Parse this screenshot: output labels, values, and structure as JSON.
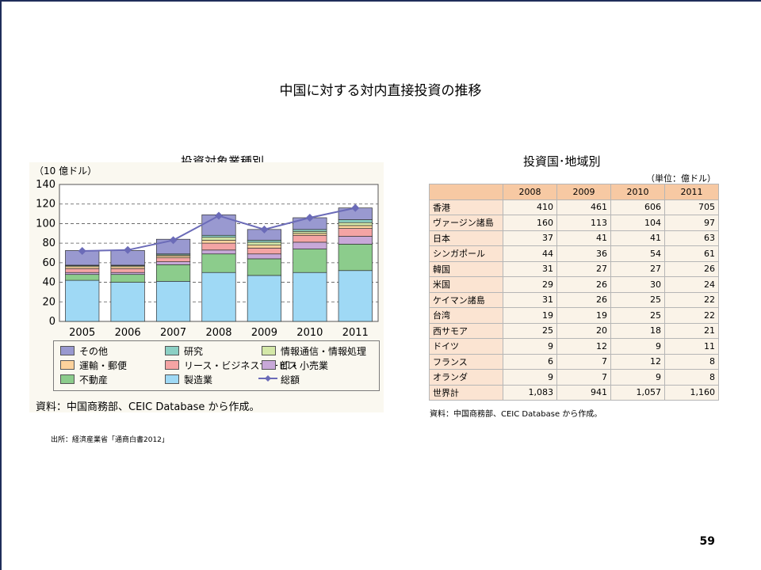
{
  "page": {
    "title": "中国に対する対内直接投資の推移",
    "left_subtitle": "投資対象業種別",
    "right_subtitle": "投資国･地域別",
    "footnote": "出所：経済産業省「通商白書2012」",
    "page_number": "59"
  },
  "chart_data": {
    "type": "bar",
    "stacked": true,
    "ylabel": "（10 億ドル）",
    "ylim": [
      0,
      140
    ],
    "yticks": [
      0,
      20,
      40,
      60,
      80,
      100,
      120,
      140
    ],
    "grid": true,
    "categories": [
      "2005",
      "2006",
      "2007",
      "2008",
      "2009",
      "2010",
      "2011"
    ],
    "series": [
      {
        "name": "製造業",
        "color": "#9fd9f5",
        "values": [
          42,
          40,
          41,
          50,
          47,
          50,
          52
        ]
      },
      {
        "name": "不動産",
        "color": "#8ccc8c",
        "values": [
          6,
          8,
          17,
          19,
          17,
          24,
          27
        ]
      },
      {
        "name": "卸・小売業",
        "color": "#c8a8d8",
        "values": [
          2,
          2,
          3,
          4,
          5,
          7,
          8
        ]
      },
      {
        "name": "リース・ビジネスサービス",
        "color": "#f4a4a4",
        "values": [
          4,
          4,
          4,
          7,
          6,
          7,
          8
        ]
      },
      {
        "name": "運輸・郵便",
        "color": "#fcd29c",
        "values": [
          2,
          2,
          2,
          3,
          3,
          2,
          3
        ]
      },
      {
        "name": "情報通信・情報処理",
        "color": "#d4e8a8",
        "values": [
          1,
          1,
          1,
          3,
          3,
          2,
          3
        ]
      },
      {
        "name": "研究",
        "color": "#8cd0c4",
        "values": [
          0.5,
          0.5,
          1,
          2,
          2,
          2,
          3
        ]
      },
      {
        "name": "その他",
        "color": "#9999d0",
        "values": [
          15,
          15,
          15,
          21,
          11,
          12,
          12
        ]
      }
    ],
    "line": {
      "name": "総額",
      "color": "#6b6bb8",
      "values": [
        72,
        73,
        83,
        108,
        94,
        106,
        116
      ]
    },
    "source": "資料：中国商務部、CEIC Database から作成。"
  },
  "table": {
    "unit": "（単位：億ドル）",
    "years": [
      "2008",
      "2009",
      "2010",
      "2011"
    ],
    "rows": [
      {
        "label": "香港",
        "values": [
          "410",
          "461",
          "606",
          "705"
        ]
      },
      {
        "label": "ヴァージン諸島",
        "values": [
          "160",
          "113",
          "104",
          "97"
        ]
      },
      {
        "label": "日本",
        "values": [
          "37",
          "41",
          "41",
          "63"
        ]
      },
      {
        "label": "シンガポール",
        "values": [
          "44",
          "36",
          "54",
          "61"
        ]
      },
      {
        "label": "韓国",
        "values": [
          "31",
          "27",
          "27",
          "26"
        ]
      },
      {
        "label": "米国",
        "values": [
          "29",
          "26",
          "30",
          "24"
        ]
      },
      {
        "label": "ケイマン諸島",
        "values": [
          "31",
          "26",
          "25",
          "22"
        ]
      },
      {
        "label": "台湾",
        "values": [
          "19",
          "19",
          "25",
          "22"
        ]
      },
      {
        "label": "西サモア",
        "values": [
          "25",
          "20",
          "18",
          "21"
        ]
      },
      {
        "label": "ドイツ",
        "values": [
          "9",
          "12",
          "9",
          "11"
        ]
      },
      {
        "label": "フランス",
        "values": [
          "6",
          "7",
          "12",
          "8"
        ]
      },
      {
        "label": "オランダ",
        "values": [
          "9",
          "7",
          "9",
          "8"
        ]
      },
      {
        "label": "世界計",
        "values": [
          "1,083",
          "941",
          "1,057",
          "1,160"
        ]
      }
    ],
    "source": "資料：中国商務部、CEIC Database から作成。"
  }
}
